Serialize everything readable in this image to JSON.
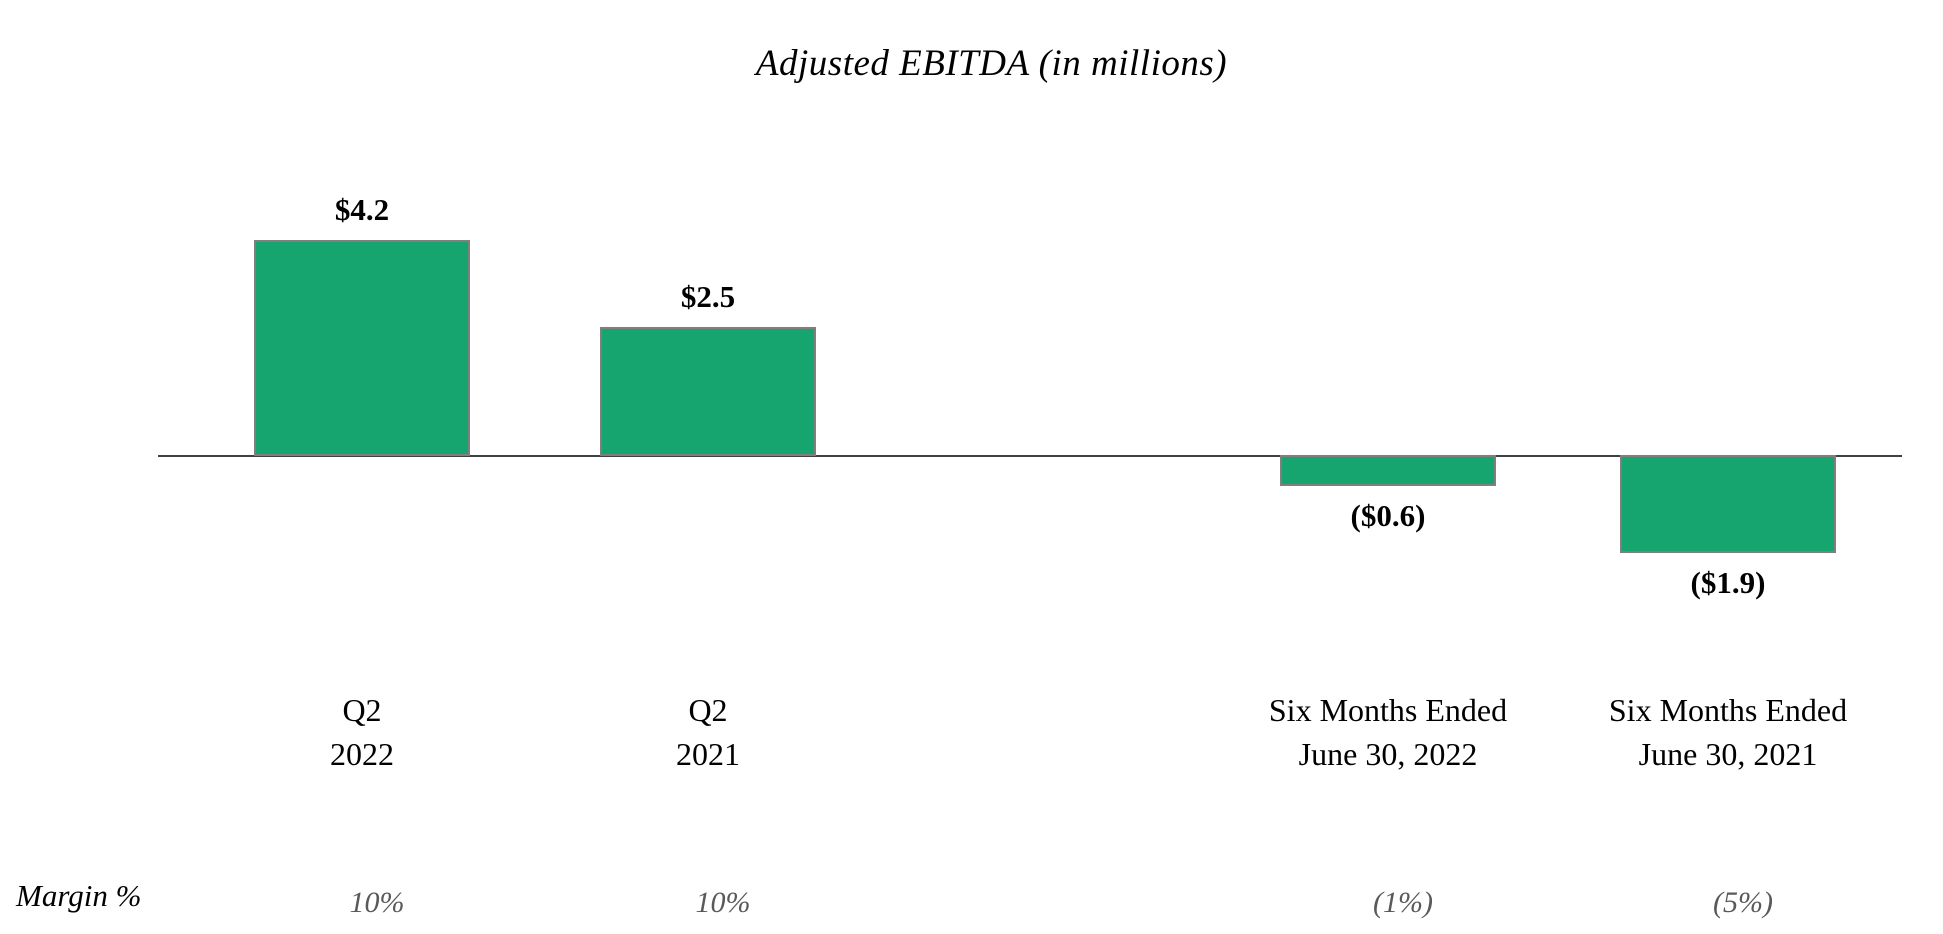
{
  "chart_data": {
    "type": "bar",
    "title": "Adjusted EBITDA (in millions)",
    "categories": [
      {
        "line1": "Q2",
        "line2": "2022"
      },
      {
        "line1": "Q2",
        "line2": "2021"
      },
      {
        "line1": "Six Months Ended",
        "line2": "June 30, 2022"
      },
      {
        "line1": "Six Months Ended",
        "line2": "June 30, 2021"
      }
    ],
    "values": [
      4.2,
      2.5,
      -0.6,
      -1.9
    ],
    "value_labels": [
      "$4.2",
      "$2.5",
      "($0.6)",
      "($1.9)"
    ],
    "margin_row": {
      "label": "Margin %",
      "values": [
        "10%",
        "10%",
        "(1%)",
        "(5%)"
      ]
    },
    "colors": {
      "bar_fill": "#16A56F",
      "bar_border": "#7F7F7F",
      "axis": "#404040",
      "margin_value": "#595959",
      "text": "#000000"
    },
    "ylim": [
      -2.5,
      4.8
    ],
    "layout_hints": {
      "grid": false,
      "legend": false,
      "y_axis_ticks": false,
      "value_labels_position": "outside-end",
      "baseline": "zero-line only"
    }
  }
}
